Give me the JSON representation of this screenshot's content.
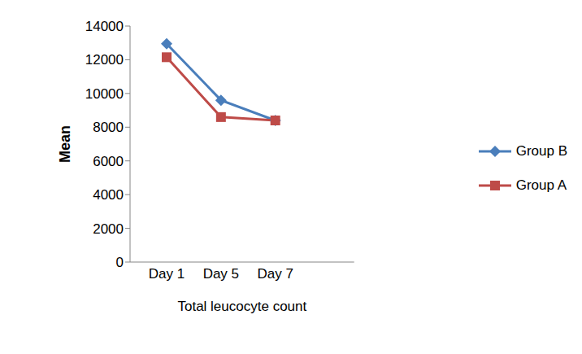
{
  "chart_data": {
    "type": "line",
    "x_label": "Total leucocyte count",
    "y_label": "Mean",
    "categories": [
      "Day 1",
      "Day 5",
      "Day 7"
    ],
    "series": [
      {
        "name": "Group B",
        "color": "#4a7ebb",
        "marker": "diamond",
        "values": [
          12950,
          9600,
          8400
        ]
      },
      {
        "name": "Group A",
        "color": "#be4b48",
        "marker": "square",
        "values": [
          12150,
          8600,
          8400
        ]
      }
    ],
    "ylim": [
      0,
      14000
    ],
    "yticks": [
      0,
      2000,
      4000,
      6000,
      8000,
      10000,
      12000,
      14000
    ],
    "grid": false,
    "legend": "right"
  }
}
